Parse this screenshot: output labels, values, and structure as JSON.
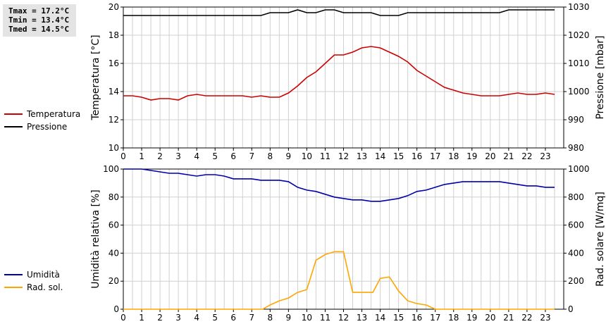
{
  "stats": {
    "tmax": "Tmax = 17.2°C",
    "tmin": "Tmin = 13.4°C",
    "tmed": "Tmed = 14.5°C"
  },
  "legend_top": [
    {
      "label": "Temperatura",
      "color": "#cc0000"
    },
    {
      "label": "Pressione",
      "color": "#000000"
    }
  ],
  "legend_bottom": [
    {
      "label": "Umidità",
      "color": "#0000aa"
    },
    {
      "label": "Rad. sol.",
      "color": "#ffa500"
    }
  ],
  "chart_data": [
    {
      "type": "line",
      "ylabel": "Temperatura [°C]",
      "y2label": "Pressione [mbar]",
      "xlim": [
        0,
        24
      ],
      "ylim": [
        10,
        20
      ],
      "y2lim": [
        980,
        1030
      ],
      "xticks": [
        0,
        1,
        2,
        3,
        4,
        5,
        6,
        7,
        8,
        9,
        10,
        11,
        12,
        13,
        14,
        15,
        16,
        17,
        18,
        19,
        20,
        21,
        22,
        23
      ],
      "yticks": [
        10,
        12,
        14,
        16,
        18,
        20
      ],
      "y2ticks": [
        980,
        990,
        1000,
        1010,
        1020,
        1030
      ],
      "grid": true,
      "series": [
        {
          "name": "Temperatura",
          "axis": "left",
          "color": "#cc0000",
          "x": [
            0,
            0.5,
            1,
            1.5,
            2,
            2.5,
            3,
            3.5,
            4,
            4.5,
            5,
            5.5,
            6,
            6.5,
            7,
            7.5,
            8,
            8.5,
            9,
            9.5,
            10,
            10.5,
            11,
            11.5,
            12,
            12.5,
            13,
            13.5,
            14,
            14.5,
            15,
            15.5,
            16,
            16.5,
            17,
            17.5,
            18,
            18.5,
            19,
            19.5,
            20,
            20.5,
            21,
            21.5,
            22,
            22.5,
            23,
            23.5
          ],
          "y": [
            13.7,
            13.7,
            13.6,
            13.4,
            13.5,
            13.5,
            13.4,
            13.7,
            13.8,
            13.7,
            13.7,
            13.7,
            13.7,
            13.7,
            13.6,
            13.7,
            13.6,
            13.6,
            13.9,
            14.4,
            15.0,
            15.4,
            16.0,
            16.6,
            16.6,
            16.8,
            17.1,
            17.2,
            17.1,
            16.8,
            16.5,
            16.1,
            15.5,
            15.1,
            14.7,
            14.3,
            14.1,
            13.9,
            13.8,
            13.7,
            13.7,
            13.7,
            13.8,
            13.9,
            13.8,
            13.8,
            13.9,
            13.8
          ]
        },
        {
          "name": "Pressione",
          "axis": "right",
          "color": "#000000",
          "x": [
            0,
            0.5,
            1,
            1.5,
            2,
            2.5,
            3,
            3.5,
            4,
            4.5,
            5,
            5.5,
            6,
            6.5,
            7,
            7.5,
            8,
            8.5,
            9,
            9.5,
            10,
            10.5,
            11,
            11.5,
            12,
            12.5,
            13,
            13.5,
            14,
            14.5,
            15,
            15.5,
            16,
            16.5,
            17,
            17.5,
            18,
            18.5,
            19,
            19.5,
            20,
            20.5,
            21,
            21.5,
            22,
            22.5,
            23,
            23.5
          ],
          "y": [
            1027,
            1027,
            1027,
            1027,
            1027,
            1027,
            1027,
            1027,
            1027,
            1027,
            1027,
            1027,
            1027,
            1027,
            1027,
            1027,
            1028,
            1028,
            1028,
            1029,
            1028,
            1028,
            1029,
            1029,
            1028,
            1028,
            1028,
            1028,
            1027,
            1027,
            1027,
            1028,
            1028,
            1028,
            1028,
            1028,
            1028,
            1028,
            1028,
            1028,
            1028,
            1028,
            1029,
            1029,
            1029,
            1029,
            1029,
            1029
          ]
        }
      ]
    },
    {
      "type": "line",
      "ylabel": "Umidità relativa [%]",
      "y2label": "Rad. solare [W/mq]",
      "xlim": [
        0,
        24
      ],
      "ylim": [
        0,
        100
      ],
      "y2lim": [
        0,
        1000
      ],
      "xticks": [
        0,
        1,
        2,
        3,
        4,
        5,
        6,
        7,
        8,
        9,
        10,
        11,
        12,
        13,
        14,
        15,
        16,
        17,
        18,
        19,
        20,
        21,
        22,
        23
      ],
      "yticks": [
        0,
        20,
        40,
        60,
        80,
        100
      ],
      "y2ticks": [
        0,
        200,
        400,
        600,
        800,
        1000
      ],
      "grid": true,
      "series": [
        {
          "name": "Umidità",
          "axis": "left",
          "color": "#0000aa",
          "x": [
            0,
            0.5,
            1,
            1.5,
            2,
            2.5,
            3,
            3.5,
            4,
            4.5,
            5,
            5.5,
            6,
            6.5,
            7,
            7.5,
            8,
            8.5,
            9,
            9.5,
            10,
            10.5,
            11,
            11.5,
            12,
            12.5,
            13,
            13.5,
            14,
            14.5,
            15,
            15.5,
            16,
            16.5,
            17,
            17.5,
            18,
            18.5,
            19,
            19.5,
            20,
            20.5,
            21,
            21.5,
            22,
            22.5,
            23,
            23.5
          ],
          "y": [
            100,
            100,
            100,
            99,
            98,
            97,
            97,
            96,
            95,
            96,
            96,
            95,
            93,
            93,
            93,
            92,
            92,
            92,
            91,
            87,
            85,
            84,
            82,
            80,
            79,
            78,
            78,
            77,
            77,
            78,
            79,
            81,
            84,
            85,
            87,
            89,
            90,
            91,
            91,
            91,
            91,
            91,
            90,
            89,
            88,
            88,
            87,
            87
          ]
        },
        {
          "name": "Rad. sol.",
          "axis": "right",
          "color": "#ffa500",
          "x": [
            0,
            1,
            2,
            3,
            4,
            5,
            6,
            7,
            7.6,
            8,
            8.5,
            9,
            9.5,
            10,
            10.5,
            11,
            11.5,
            12,
            12.5,
            13,
            13.6,
            14,
            14.5,
            15,
            15.5,
            16,
            16.5,
            17,
            18,
            19,
            20,
            21,
            22,
            23,
            23.5
          ],
          "y": [
            0,
            0,
            0,
            0,
            0,
            0,
            0,
            0,
            0,
            30,
            60,
            80,
            120,
            140,
            350,
            390,
            410,
            410,
            120,
            120,
            120,
            220,
            230,
            130,
            60,
            40,
            30,
            0,
            0,
            0,
            0,
            0,
            0,
            0,
            0
          ]
        }
      ]
    }
  ]
}
